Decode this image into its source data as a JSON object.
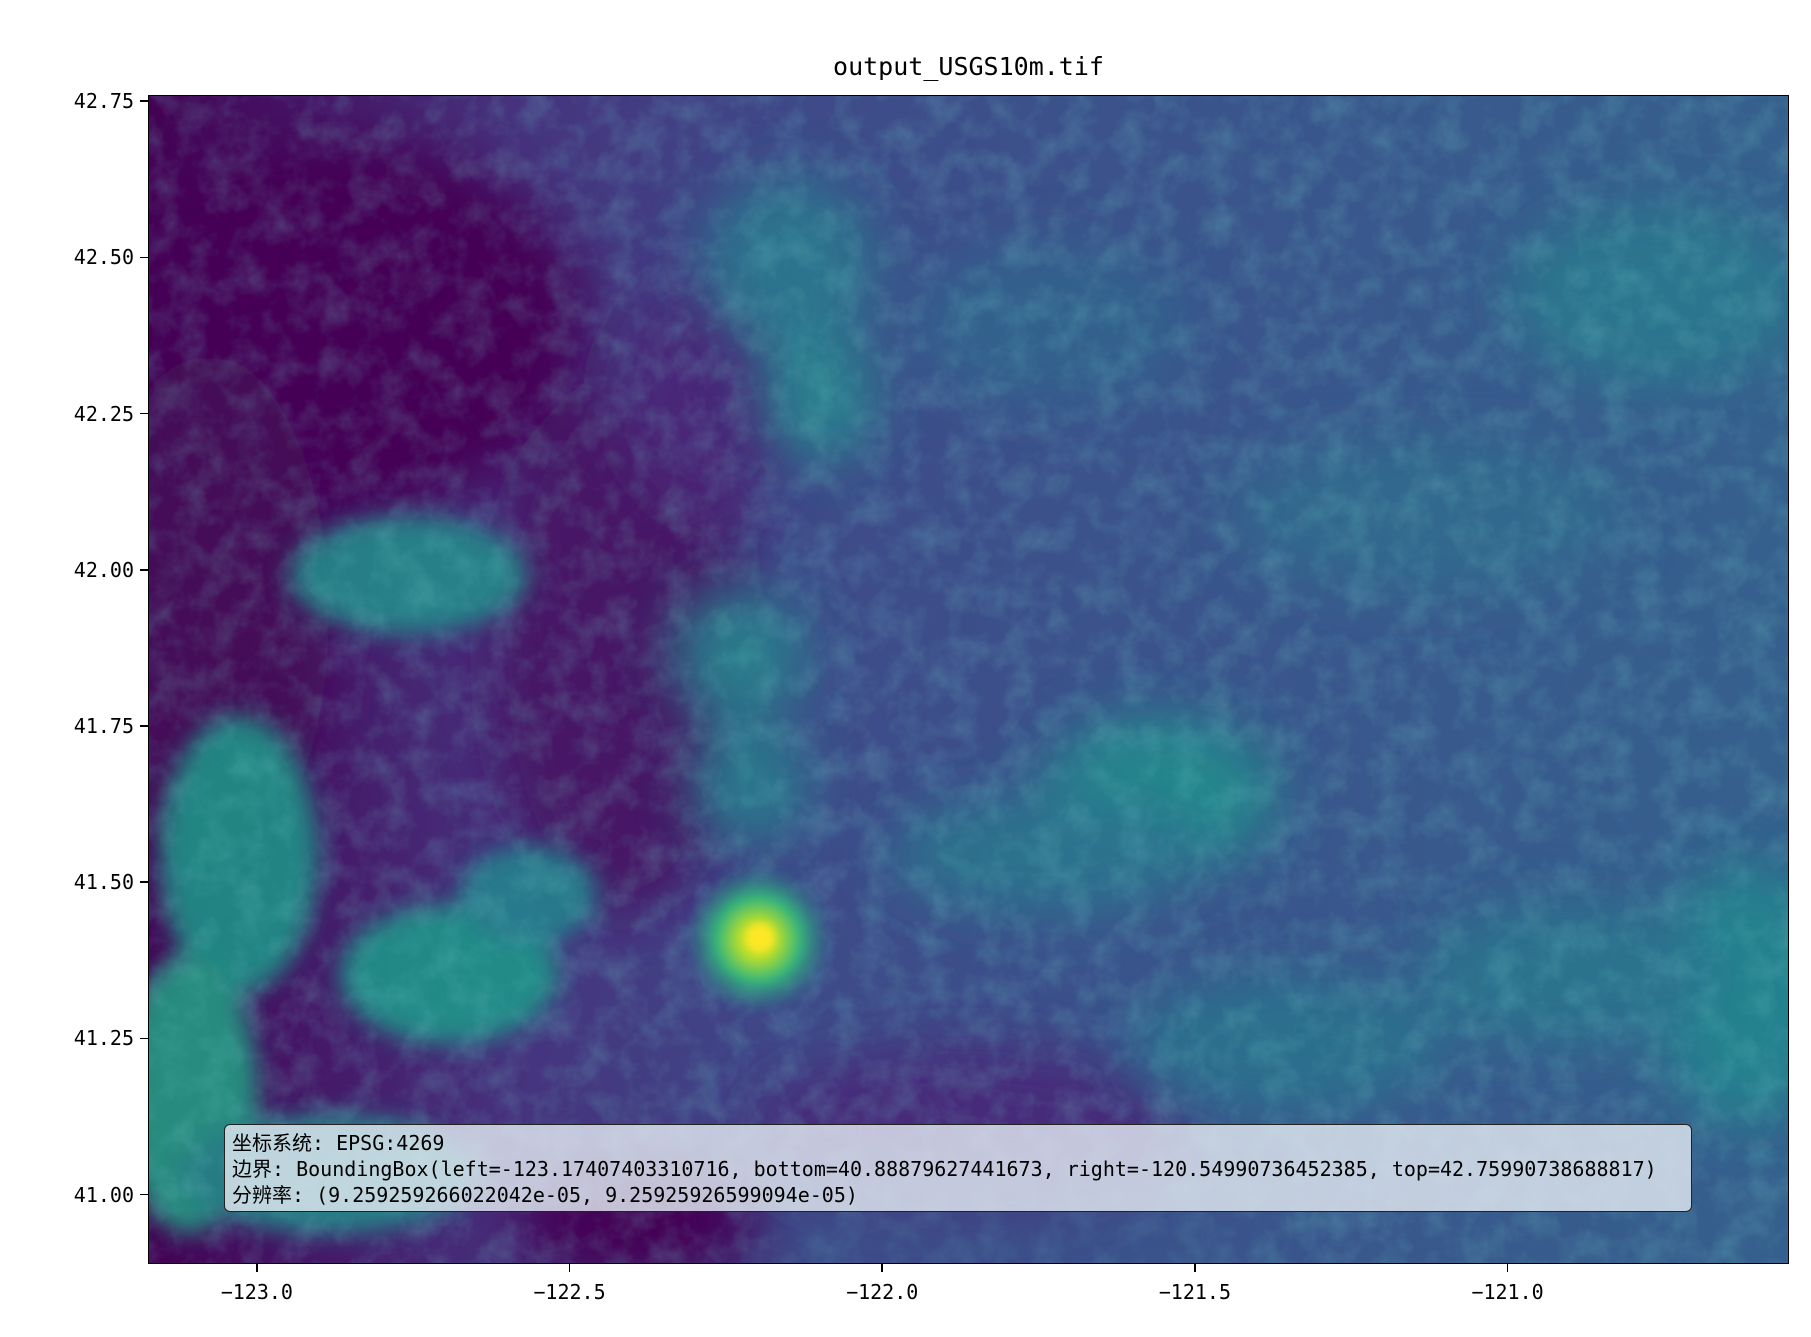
{
  "title": "output_USGS10m.tif",
  "map": {
    "colormap": "viridis",
    "xlim": [
      -123.17407403310716,
      -120.54990736452385
    ],
    "ylim": [
      40.88879627441673,
      42.75990738688817
    ],
    "x_ticks": [
      {
        "value": -123.0,
        "label": "−123.0"
      },
      {
        "value": -122.5,
        "label": "−122.5"
      },
      {
        "value": -122.0,
        "label": "−122.0"
      },
      {
        "value": -121.5,
        "label": "−121.5"
      },
      {
        "value": -121.0,
        "label": "−121.0"
      }
    ],
    "y_ticks": [
      {
        "value": 42.75,
        "label": "42.75"
      },
      {
        "value": 42.5,
        "label": "42.50"
      },
      {
        "value": 42.25,
        "label": "42.25"
      },
      {
        "value": 42.0,
        "label": "42.00"
      },
      {
        "value": 41.75,
        "label": "41.75"
      },
      {
        "value": 41.5,
        "label": "41.50"
      },
      {
        "value": 41.25,
        "label": "41.25"
      },
      {
        "value": 41.0,
        "label": "41.00"
      }
    ]
  },
  "info": {
    "crs": "坐标系统: EPSG:4269",
    "bounds": "边界: BoundingBox(left=-123.17407403310716, bottom=40.88879627441673, right=-120.54990736452385, top=42.75990738688817)",
    "resolution": "分辨率: (9.259259266022042e-05, 9.25925926599094e-05)"
  },
  "colors": {
    "viridis_dark": "#440154",
    "viridis_purple": "#46337e",
    "viridis_blue": "#365c8d",
    "viridis_mid": "#277f8e",
    "viridis_teal": "#1fa187",
    "viridis_green": "#4ac16d",
    "viridis_yellow": "#fde725"
  }
}
